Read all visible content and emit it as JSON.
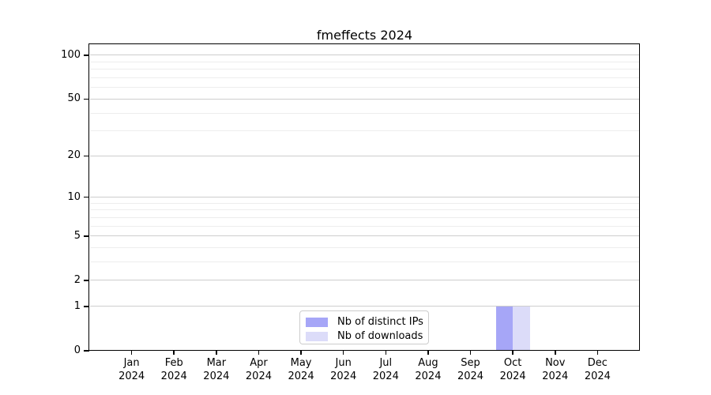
{
  "chart_data": {
    "type": "bar",
    "title": "fmeffects 2024",
    "x_year_label": "2024",
    "categories": [
      "Jan",
      "Feb",
      "Mar",
      "Apr",
      "May",
      "Jun",
      "Jul",
      "Aug",
      "Sep",
      "Oct",
      "Nov",
      "Dec"
    ],
    "series": [
      {
        "name": "Nb of distinct IPs",
        "color": "#a6a6f7",
        "values": [
          0,
          0,
          0,
          0,
          0,
          0,
          0,
          0,
          0,
          1,
          0,
          0
        ]
      },
      {
        "name": "Nb of downloads",
        "color": "#dcdcf9",
        "values": [
          0,
          0,
          0,
          0,
          0,
          0,
          0,
          0,
          0,
          1,
          0,
          0
        ]
      }
    ],
    "yscale": "log1p",
    "ylim": [
      0,
      119
    ],
    "yticks": [
      0,
      1,
      2,
      5,
      10,
      20,
      50,
      100
    ],
    "y_minor_gridlines": [
      3,
      4,
      6,
      7,
      8,
      9,
      30,
      40,
      60,
      70,
      80,
      90
    ],
    "grid": "horizontal",
    "legend_position": "lower center",
    "colors": {
      "major_grid": "#cdcdcd",
      "minor_grid": "#ededed",
      "spine": "#000000",
      "text": "#000000",
      "background": "#ffffff"
    }
  }
}
